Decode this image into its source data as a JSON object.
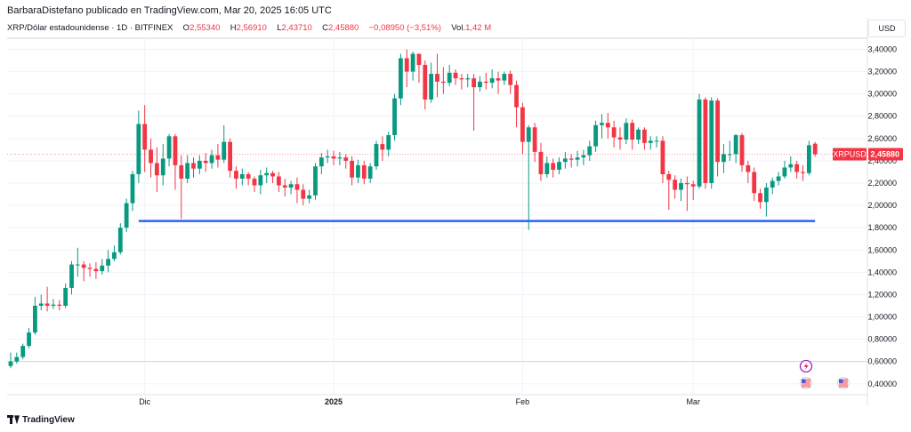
{
  "header": {
    "published": "BarbaraDistefano publicado en TradingView.com, Mar 20, 2025 16:05 UTC",
    "symbol_title": "XRP/Dólar estadounidense · 1D · BITFINEX",
    "ohlc": [
      {
        "label": "O",
        "value": "2,55340"
      },
      {
        "label": "H",
        "value": "2,56910"
      },
      {
        "label": "L",
        "value": "2,43710"
      },
      {
        "label": "C",
        "value": "2,45880"
      },
      {
        "label": "",
        "value": "−0,08950 (−3,51%)"
      }
    ],
    "volume_label": "Vol.",
    "volume_value": "1,42 M",
    "currency": "USD"
  },
  "footer": {
    "brand": "TradingView"
  },
  "colors": {
    "up": "#089981",
    "down": "#f23645",
    "support_line": "#2962ff",
    "grid": "#f0f3fa",
    "price_tag_bg": "#f23645"
  },
  "icons": [
    "lightning-icon",
    "us-flag-event-icon",
    "us-flag-event-icon"
  ],
  "chart_data": {
    "type": "candlestick",
    "title": "XRP/Dólar estadounidense · 1D · BITFINEX",
    "ylim": [
      0.35,
      3.5
    ],
    "y_ticks": [
      "3,40000",
      "3,20000",
      "3,00000",
      "2,80000",
      "2,60000",
      "2,40000",
      "2,20000",
      "2,00000",
      "1,80000",
      "1,60000",
      "1,40000",
      "1,20000",
      "1,00000",
      "0,80000",
      "0,60000",
      "0,40000"
    ],
    "x_ticks": [
      {
        "label": "Dic",
        "index": 22,
        "bold": false
      },
      {
        "label": "2025",
        "index": 53,
        "bold": true
      },
      {
        "label": "Feb",
        "index": 84,
        "bold": false
      },
      {
        "label": "Mar",
        "index": 112,
        "bold": false
      }
    ],
    "last_price_label": "XRPUSD",
    "last_price_value": "2,45880",
    "last_price": 2.4588,
    "support_level": 1.86,
    "support_range": [
      21,
      132
    ],
    "candles": [
      [
        0.56,
        0.6,
        0.54,
        0.68
      ],
      [
        0.6,
        0.64,
        0.58,
        0.68
      ],
      [
        0.64,
        0.74,
        0.62,
        0.76
      ],
      [
        0.74,
        0.86,
        0.72,
        0.9
      ],
      [
        0.86,
        1.1,
        0.84,
        1.18
      ],
      [
        1.1,
        1.12,
        1.06,
        1.2
      ],
      [
        1.12,
        1.1,
        1.05,
        1.27
      ],
      [
        1.1,
        1.11,
        1.07,
        1.16
      ],
      [
        1.11,
        1.1,
        1.06,
        1.15
      ],
      [
        1.1,
        1.26,
        1.08,
        1.3
      ],
      [
        1.26,
        1.47,
        1.2,
        1.5
      ],
      [
        1.47,
        1.47,
        1.36,
        1.62
      ],
      [
        1.47,
        1.44,
        1.32,
        1.5
      ],
      [
        1.44,
        1.43,
        1.36,
        1.48
      ],
      [
        1.43,
        1.41,
        1.34,
        1.49
      ],
      [
        1.41,
        1.46,
        1.38,
        1.52
      ],
      [
        1.46,
        1.52,
        1.4,
        1.6
      ],
      [
        1.52,
        1.58,
        1.5,
        1.64
      ],
      [
        1.58,
        1.8,
        1.56,
        1.84
      ],
      [
        1.8,
        2.02,
        1.76,
        2.06
      ],
      [
        2.02,
        2.28,
        1.95,
        2.31
      ],
      [
        2.28,
        2.73,
        2.2,
        2.85
      ],
      [
        2.73,
        2.5,
        2.3,
        2.9
      ],
      [
        2.5,
        2.38,
        2.25,
        2.6
      ],
      [
        2.38,
        2.27,
        2.12,
        2.52
      ],
      [
        2.27,
        2.42,
        2.18,
        2.55
      ],
      [
        2.42,
        2.62,
        2.35,
        2.64
      ],
      [
        2.62,
        2.36,
        2.14,
        2.64
      ],
      [
        2.36,
        2.24,
        1.88,
        2.45
      ],
      [
        2.24,
        2.38,
        2.2,
        2.45
      ],
      [
        2.38,
        2.33,
        2.25,
        2.43
      ],
      [
        2.33,
        2.4,
        2.28,
        2.45
      ],
      [
        2.4,
        2.38,
        2.3,
        2.47
      ],
      [
        2.38,
        2.45,
        2.33,
        2.5
      ],
      [
        2.45,
        2.41,
        2.34,
        2.55
      ],
      [
        2.41,
        2.57,
        2.38,
        2.72
      ],
      [
        2.57,
        2.31,
        2.25,
        2.6
      ],
      [
        2.31,
        2.24,
        2.15,
        2.35
      ],
      [
        2.24,
        2.28,
        2.18,
        2.33
      ],
      [
        2.28,
        2.24,
        2.18,
        2.3
      ],
      [
        2.24,
        2.18,
        2.12,
        2.26
      ],
      [
        2.18,
        2.27,
        2.1,
        2.32
      ],
      [
        2.27,
        2.29,
        2.2,
        2.34
      ],
      [
        2.29,
        2.26,
        2.2,
        2.31
      ],
      [
        2.26,
        2.18,
        2.12,
        2.3
      ],
      [
        2.18,
        2.16,
        2.08,
        2.24
      ],
      [
        2.16,
        2.19,
        2.1,
        2.22
      ],
      [
        2.19,
        2.14,
        2.02,
        2.25
      ],
      [
        2.14,
        2.06,
        2.0,
        2.19
      ],
      [
        2.06,
        2.09,
        2.02,
        2.14
      ],
      [
        2.09,
        2.35,
        2.05,
        2.38
      ],
      [
        2.35,
        2.43,
        2.28,
        2.47
      ],
      [
        2.43,
        2.44,
        2.38,
        2.5
      ],
      [
        2.44,
        2.42,
        2.36,
        2.49
      ],
      [
        2.42,
        2.43,
        2.36,
        2.48
      ],
      [
        2.43,
        2.4,
        2.33,
        2.46
      ],
      [
        2.4,
        2.25,
        2.18,
        2.44
      ],
      [
        2.25,
        2.36,
        2.2,
        2.41
      ],
      [
        2.36,
        2.24,
        2.19,
        2.4
      ],
      [
        2.24,
        2.35,
        2.2,
        2.38
      ],
      [
        2.35,
        2.55,
        2.32,
        2.58
      ],
      [
        2.55,
        2.5,
        2.4,
        2.62
      ],
      [
        2.5,
        2.63,
        2.44,
        2.66
      ],
      [
        2.63,
        2.96,
        2.58,
        3.0
      ],
      [
        2.96,
        3.32,
        2.9,
        3.36
      ],
      [
        3.32,
        3.2,
        3.06,
        3.4
      ],
      [
        3.2,
        3.36,
        3.12,
        3.38
      ],
      [
        3.36,
        3.26,
        3.1,
        3.34
      ],
      [
        3.26,
        2.95,
        2.86,
        3.3
      ],
      [
        2.95,
        3.18,
        2.92,
        3.28
      ],
      [
        3.18,
        3.11,
        2.97,
        3.36
      ],
      [
        3.11,
        3.1,
        3.0,
        3.24
      ],
      [
        3.1,
        3.19,
        3.07,
        3.26
      ],
      [
        3.19,
        3.14,
        3.08,
        3.22
      ],
      [
        3.14,
        3.13,
        3.04,
        3.18
      ],
      [
        3.13,
        3.14,
        3.06,
        3.18
      ],
      [
        3.14,
        3.06,
        2.67,
        3.18
      ],
      [
        3.06,
        3.11,
        3.02,
        3.16
      ],
      [
        3.11,
        3.1,
        3.04,
        3.19
      ],
      [
        3.1,
        3.14,
        3.05,
        3.22
      ],
      [
        3.14,
        3.12,
        3.0,
        3.2
      ],
      [
        3.12,
        3.18,
        3.08,
        3.2
      ],
      [
        3.18,
        3.08,
        3.0,
        3.21
      ],
      [
        3.08,
        2.88,
        2.7,
        3.12
      ],
      [
        2.88,
        2.57,
        2.46,
        2.92
      ],
      [
        2.57,
        2.7,
        1.78,
        2.72
      ],
      [
        2.7,
        2.48,
        2.39,
        2.74
      ],
      [
        2.48,
        2.28,
        2.22,
        2.56
      ],
      [
        2.28,
        2.38,
        2.25,
        2.44
      ],
      [
        2.38,
        2.32,
        2.25,
        2.42
      ],
      [
        2.32,
        2.39,
        2.28,
        2.43
      ],
      [
        2.39,
        2.42,
        2.33,
        2.48
      ],
      [
        2.42,
        2.41,
        2.34,
        2.46
      ],
      [
        2.41,
        2.43,
        2.35,
        2.49
      ],
      [
        2.43,
        2.45,
        2.36,
        2.5
      ],
      [
        2.45,
        2.53,
        2.4,
        2.58
      ],
      [
        2.53,
        2.72,
        2.48,
        2.76
      ],
      [
        2.72,
        2.74,
        2.6,
        2.82
      ],
      [
        2.74,
        2.7,
        2.6,
        2.83
      ],
      [
        2.7,
        2.61,
        2.52,
        2.76
      ],
      [
        2.61,
        2.59,
        2.5,
        2.7
      ],
      [
        2.59,
        2.74,
        2.55,
        2.78
      ],
      [
        2.74,
        2.59,
        2.5,
        2.77
      ],
      [
        2.59,
        2.68,
        2.55,
        2.7
      ],
      [
        2.68,
        2.56,
        2.5,
        2.7
      ],
      [
        2.56,
        2.58,
        2.5,
        2.62
      ],
      [
        2.58,
        2.58,
        2.52,
        2.62
      ],
      [
        2.58,
        2.28,
        2.2,
        2.62
      ],
      [
        2.28,
        2.23,
        1.96,
        2.31
      ],
      [
        2.23,
        2.14,
        2.06,
        2.27
      ],
      [
        2.14,
        2.2,
        2.04,
        2.24
      ],
      [
        2.2,
        2.19,
        1.95,
        2.26
      ],
      [
        2.19,
        2.17,
        2.05,
        2.22
      ],
      [
        2.17,
        2.95,
        2.15,
        3.0
      ],
      [
        2.95,
        2.2,
        2.15,
        2.97
      ],
      [
        2.2,
        2.94,
        2.15,
        2.97
      ],
      [
        2.94,
        2.39,
        2.26,
        2.96
      ],
      [
        2.39,
        2.46,
        2.29,
        2.55
      ],
      [
        2.46,
        2.46,
        2.4,
        2.58
      ],
      [
        2.46,
        2.63,
        2.38,
        2.64
      ],
      [
        2.63,
        2.36,
        2.3,
        2.65
      ],
      [
        2.36,
        2.3,
        2.2,
        2.4
      ],
      [
        2.3,
        2.11,
        2.04,
        2.34
      ],
      [
        2.11,
        2.03,
        1.97,
        2.15
      ],
      [
        2.03,
        2.16,
        1.9,
        2.2
      ],
      [
        2.16,
        2.22,
        2.1,
        2.25
      ],
      [
        2.22,
        2.26,
        2.18,
        2.3
      ],
      [
        2.26,
        2.34,
        2.24,
        2.4
      ],
      [
        2.34,
        2.37,
        2.3,
        2.44
      ],
      [
        2.37,
        2.3,
        2.24,
        2.4
      ],
      [
        2.3,
        2.29,
        2.22,
        2.36
      ],
      [
        2.29,
        2.54,
        2.27,
        2.58
      ],
      [
        2.5534,
        2.4588,
        2.4371,
        2.5691
      ]
    ]
  }
}
